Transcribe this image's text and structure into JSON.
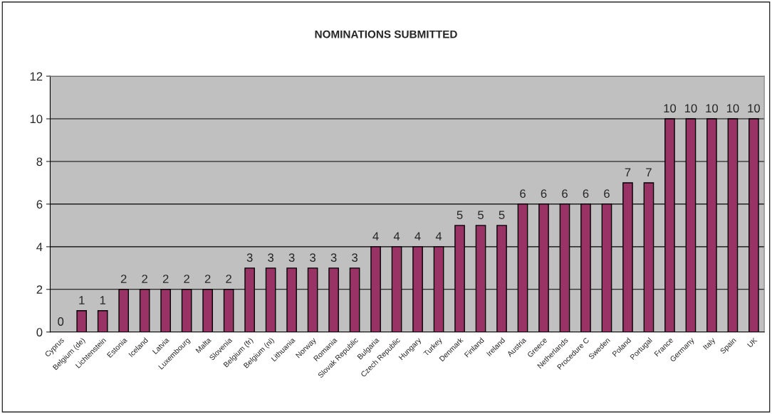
{
  "chart_data": {
    "type": "bar",
    "title": "NOMINATIONS SUBMITTED",
    "categories": [
      "Cyprus",
      "Belgium (de)",
      "Lichtenstein",
      "Estonia",
      "Iceland",
      "Latvia",
      "Luxembourg",
      "Malta",
      "Slovenia",
      "Belgium (fr)",
      "Belgium (nl)",
      "Lithuania",
      "Norway",
      "Romania",
      "Slovak Republic",
      "Bulgaria",
      "Czech Republic",
      "Hungary",
      "Turkey",
      "Denmark",
      "Finland",
      "Ireland",
      "Austria",
      "Greece",
      "Netherlands",
      "Procedure C",
      "Sweden",
      "Poland",
      "Portugal",
      "France",
      "Germany",
      "Italy",
      "Spain",
      "UK"
    ],
    "values": [
      0,
      1,
      1,
      2,
      2,
      2,
      2,
      2,
      2,
      3,
      3,
      3,
      3,
      3,
      3,
      4,
      4,
      4,
      4,
      5,
      5,
      5,
      6,
      6,
      6,
      6,
      6,
      7,
      7,
      10,
      10,
      10,
      10,
      10
    ],
    "color": "#993366",
    "ylim": [
      0,
      12
    ],
    "yticks": [
      0,
      2,
      4,
      6,
      8,
      10,
      12
    ],
    "grid": "y",
    "data_labels": true,
    "legend": false
  }
}
